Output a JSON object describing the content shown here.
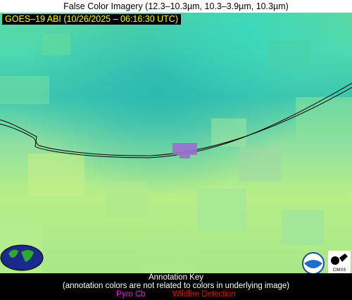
{
  "header": {
    "title": "False Color Imagery (12.3–10.3µm, 10.3–3.9µm, 10.3µm)"
  },
  "image": {
    "timestamp_label": "GOES–19 ABI (10/26/2025 – 06:16:30 UTC)"
  },
  "logos": {
    "noaa": "NOAA",
    "cimss": "CIMSS"
  },
  "annotation_key": {
    "title": "Annotation Key",
    "note": "(annotation colors are not related to colors in underlying image)",
    "items": [
      "Pyro Cb",
      "Wildfire Detection"
    ]
  }
}
